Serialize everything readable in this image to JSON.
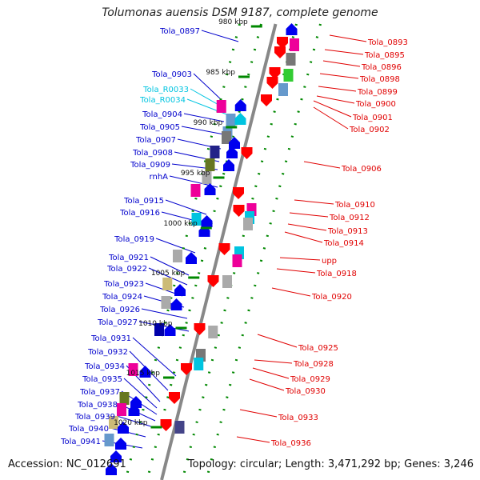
{
  "header": {
    "title": "Tolumonas auensis DSM 9187, complete genome"
  },
  "footer": {
    "accession": "Accession: NC_012691",
    "summary": "Topology: circular; Length: 3,471,292 bp; Genes: 3,246"
  },
  "colors": {
    "forward_label": "#0000cc",
    "reverse_label": "#e00000",
    "rna_label": "#00c4e0",
    "forward_gene": "#0000ee",
    "reverse_gene": "#ff0000",
    "backbone": "#888888",
    "tick": "#008800"
  },
  "scale_ticks": [
    "980 kbp",
    "985 kbp",
    "990 kbp",
    "995 kbp",
    "1000 kbp",
    "1005 kbp",
    "1010 kbp",
    "1015 kbp",
    "1020 kbp"
  ],
  "left_labels": [
    {
      "text": "Tola_0897",
      "type": "cds"
    },
    {
      "text": "Tola_0903",
      "type": "cds"
    },
    {
      "text": "Tola_R0033",
      "type": "rna"
    },
    {
      "text": "Tola_R0034",
      "type": "rna"
    },
    {
      "text": "Tola_0904",
      "type": "cds"
    },
    {
      "text": "Tola_0905",
      "type": "cds"
    },
    {
      "text": "Tola_0907",
      "type": "cds"
    },
    {
      "text": "Tola_0908",
      "type": "cds"
    },
    {
      "text": "Tola_0909",
      "type": "cds"
    },
    {
      "text": "rnhA",
      "type": "cds"
    },
    {
      "text": "Tola_0915",
      "type": "cds"
    },
    {
      "text": "Tola_0916",
      "type": "cds"
    },
    {
      "text": "Tola_0919",
      "type": "cds"
    },
    {
      "text": "Tola_0921",
      "type": "cds"
    },
    {
      "text": "Tola_0922",
      "type": "cds"
    },
    {
      "text": "Tola_0923",
      "type": "cds"
    },
    {
      "text": "Tola_0924",
      "type": "cds"
    },
    {
      "text": "Tola_0926",
      "type": "cds"
    },
    {
      "text": "Tola_0927",
      "type": "cds"
    },
    {
      "text": "Tola_0931",
      "type": "cds"
    },
    {
      "text": "Tola_0932",
      "type": "cds"
    },
    {
      "text": "Tola_0934",
      "type": "cds"
    },
    {
      "text": "Tola_0935",
      "type": "cds"
    },
    {
      "text": "Tola_0937",
      "type": "cds"
    },
    {
      "text": "Tola_0938",
      "type": "cds"
    },
    {
      "text": "Tola_0939",
      "type": "cds"
    },
    {
      "text": "Tola_0940",
      "type": "cds"
    },
    {
      "text": "Tola_0941",
      "type": "cds"
    }
  ],
  "right_labels": [
    {
      "text": "Tola_0893"
    },
    {
      "text": "Tola_0895"
    },
    {
      "text": "Tola_0896"
    },
    {
      "text": "Tola_0898"
    },
    {
      "text": "Tola_0899"
    },
    {
      "text": "Tola_0900"
    },
    {
      "text": "Tola_0901"
    },
    {
      "text": "Tola_0902"
    },
    {
      "text": "Tola_0906"
    },
    {
      "text": "Tola_0910"
    },
    {
      "text": "Tola_0912"
    },
    {
      "text": "Tola_0913"
    },
    {
      "text": "Tola_0914"
    },
    {
      "text": "upp"
    },
    {
      "text": "Tola_0918"
    },
    {
      "text": "Tola_0920"
    },
    {
      "text": "Tola_0925"
    },
    {
      "text": "Tola_0928"
    },
    {
      "text": "Tola_0929"
    },
    {
      "text": "Tola_0930"
    },
    {
      "text": "Tola_0933"
    },
    {
      "text": "Tola_0936"
    }
  ]
}
